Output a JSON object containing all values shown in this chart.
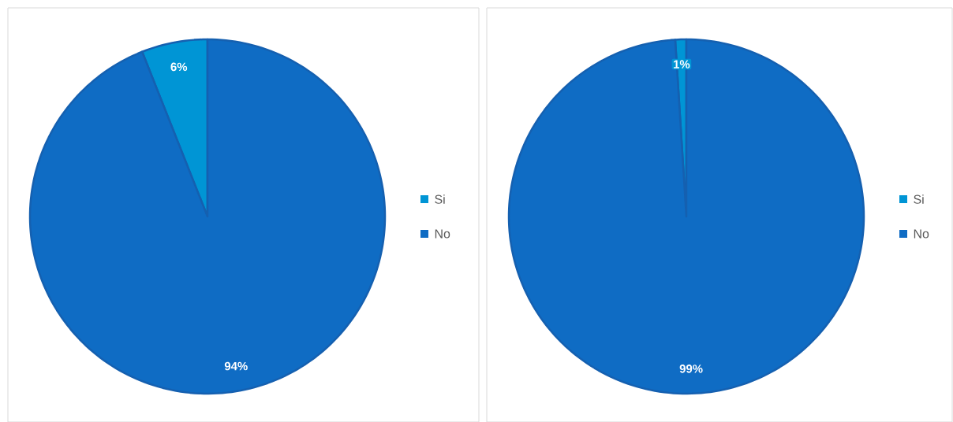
{
  "chart_data": [
    {
      "type": "pie",
      "categories": [
        "Si",
        "No"
      ],
      "values": [
        6,
        94
      ],
      "colors": [
        "#0095d5",
        "#0f6cc4"
      ],
      "value_labels": [
        "6%",
        "94%"
      ],
      "legend": "right"
    },
    {
      "type": "pie",
      "categories": [
        "Si",
        "No"
      ],
      "values": [
        1,
        99
      ],
      "colors": [
        "#0095d5",
        "#0f6cc4"
      ],
      "value_labels": [
        "1%",
        "99%"
      ],
      "legend": "right"
    }
  ]
}
